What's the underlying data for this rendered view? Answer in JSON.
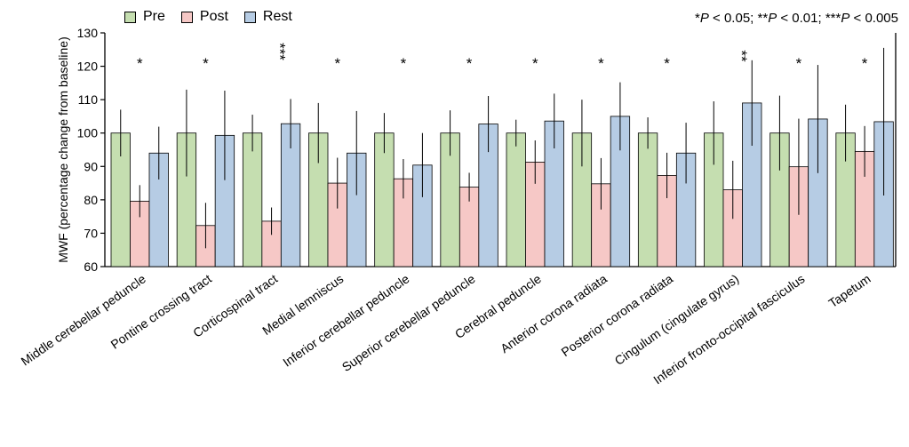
{
  "chart_data": {
    "type": "bar",
    "ylabel": "MWF (percentage change from baseline)",
    "ylim": [
      60,
      130
    ],
    "yticks": [
      60,
      70,
      80,
      90,
      100,
      110,
      120,
      130
    ],
    "significance_note": "*P < 0.05; **P < 0.01; ***P < 0.005",
    "categories": [
      "Middle cerebellar peduncle",
      "Pontine crossing tract",
      "Corticospinal tract",
      "Medial lemniscus",
      "Inferior cerebellar peduncle",
      "Superior cerebellar peduncle",
      "Cerebral peduncle",
      "Anterior corona radiata",
      "Posterior corona radiata",
      "Cingulum (cingulate gyrus)",
      "Inferior fronto-occipital fasciculus",
      "Tapetum"
    ],
    "significance": [
      "*",
      "*",
      "***",
      "*",
      "*",
      "*",
      "*",
      "*",
      "*",
      "**",
      "*",
      "*"
    ],
    "series": [
      {
        "name": "Pre",
        "color": "#c5deb0",
        "values": [
          100,
          100,
          100,
          100,
          100,
          100,
          100,
          100,
          100,
          100,
          100,
          100
        ],
        "errors": [
          7,
          13,
          5.5,
          9,
          6,
          6.8,
          4,
          10,
          4.7,
          9.5,
          11.2,
          8.5
        ]
      },
      {
        "name": "Post",
        "color": "#f6c8c6",
        "values": [
          79.6,
          72.3,
          73.6,
          85.0,
          86.3,
          83.8,
          91.3,
          84.8,
          87.3,
          83.0,
          89.9,
          94.5
        ],
        "errors": [
          4.8,
          6.8,
          4.1,
          7.6,
          5.9,
          4.3,
          6.5,
          7.7,
          6.8,
          8.7,
          14.4,
          7.6
        ]
      },
      {
        "name": "Rest",
        "color": "#b6cce4",
        "values": [
          94.0,
          99.3,
          102.8,
          94.0,
          90.4,
          102.7,
          103.6,
          105.0,
          94.0,
          109.0,
          104.2,
          103.4
        ],
        "errors": [
          7.9,
          13.4,
          7.4,
          12.6,
          9.6,
          8.4,
          8.2,
          10.2,
          9.1,
          12.8,
          16.2,
          22.1
        ]
      }
    ]
  }
}
